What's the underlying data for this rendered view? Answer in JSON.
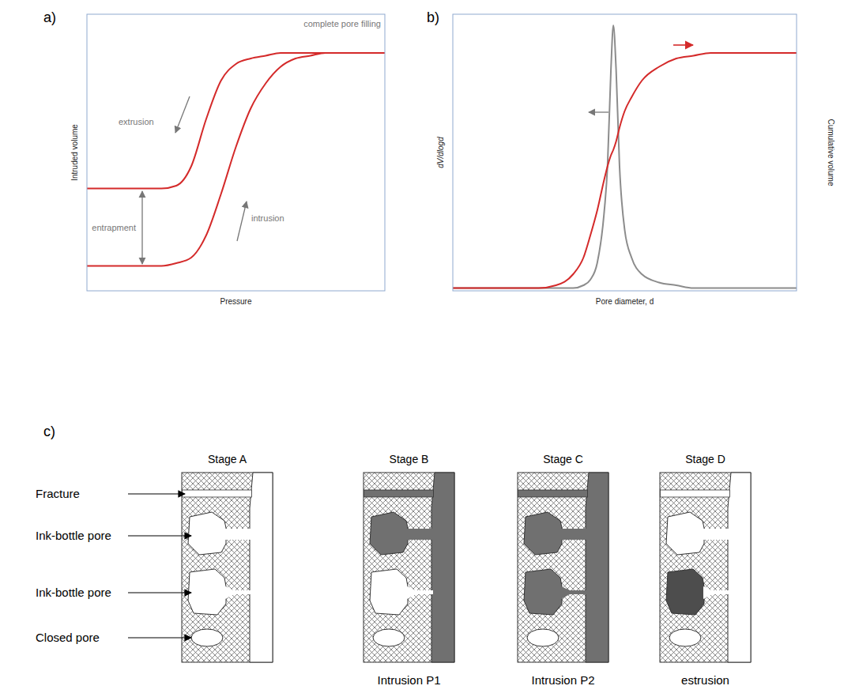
{
  "chart_data": [
    {
      "panel": "a)",
      "type": "line",
      "xlabel": "Pressure",
      "ylabel": "Intruded volume",
      "xlim": [
        0,
        100
      ],
      "ylim": [
        0,
        100
      ],
      "tick_labels": false,
      "grid": false,
      "annotations": [
        "complete pore filling",
        "extrusion",
        "intrusion",
        "entrapment"
      ],
      "x": [
        0,
        5,
        10,
        15,
        20,
        25,
        30,
        35,
        40,
        45,
        50,
        55,
        60,
        65,
        70,
        75,
        80,
        85,
        90,
        95,
        100
      ],
      "series": [
        {
          "color": "#d42a2a",
          "values": [
            9,
            9,
            9,
            9,
            9,
            9,
            10,
            12,
            20,
            35,
            52,
            66,
            75,
            81,
            84,
            85,
            86,
            86,
            86,
            86,
            86
          ]
        },
        {
          "color": "#d42a2a",
          "values": [
            37,
            37,
            37,
            37,
            37,
            37,
            38,
            45,
            62,
            76,
            82,
            84,
            85,
            86,
            86,
            86,
            86,
            86,
            86,
            86,
            86
          ]
        }
      ]
    },
    {
      "panel": "b)",
      "type": "line",
      "xlabel": "Pore diameter, d",
      "ylabel": "dV/dlogd",
      "y2label": "Cumulative volume",
      "xlim": [
        0,
        100
      ],
      "ylim": [
        0,
        100
      ],
      "y2lim": [
        0,
        100
      ],
      "tick_labels": false,
      "grid": false,
      "x": [
        0,
        5,
        10,
        15,
        20,
        25,
        30,
        35,
        38,
        40,
        42,
        44,
        45,
        46,
        46.7,
        47.5,
        48.5,
        50,
        52,
        55,
        60,
        65,
        70,
        75,
        80,
        85,
        90,
        95,
        100
      ],
      "series": [
        {
          "color": "#8c8c8c",
          "values": [
            1,
            1,
            1,
            1,
            1,
            1,
            1,
            1,
            2,
            4,
            10,
            28,
            45,
            80,
            96,
            80,
            45,
            22,
            12,
            6,
            3,
            2,
            1,
            1,
            1,
            1,
            1,
            1,
            1
          ]
        },
        {
          "color": "#d42a2a",
          "axis": "y2",
          "values": [
            1,
            1,
            1,
            1,
            1,
            1,
            2,
            6,
            12,
            20,
            29,
            40,
            45,
            49,
            51,
            54,
            59,
            65,
            70,
            76,
            81,
            84,
            85,
            86,
            86,
            86,
            86,
            86,
            86
          ]
        }
      ]
    }
  ],
  "diagram": {
    "panel": "c)",
    "stages": [
      {
        "title": "Stage A"
      },
      {
        "title": "Stage B",
        "caption": "Intrusion P1"
      },
      {
        "title": "Stage C",
        "caption": "Intrusion P2"
      },
      {
        "title": "Stage D",
        "caption": "estrusion"
      }
    ],
    "pore_labels": [
      "Fracture",
      "Ink-bottle pore",
      "Ink-bottle pore",
      "Closed pore"
    ]
  }
}
